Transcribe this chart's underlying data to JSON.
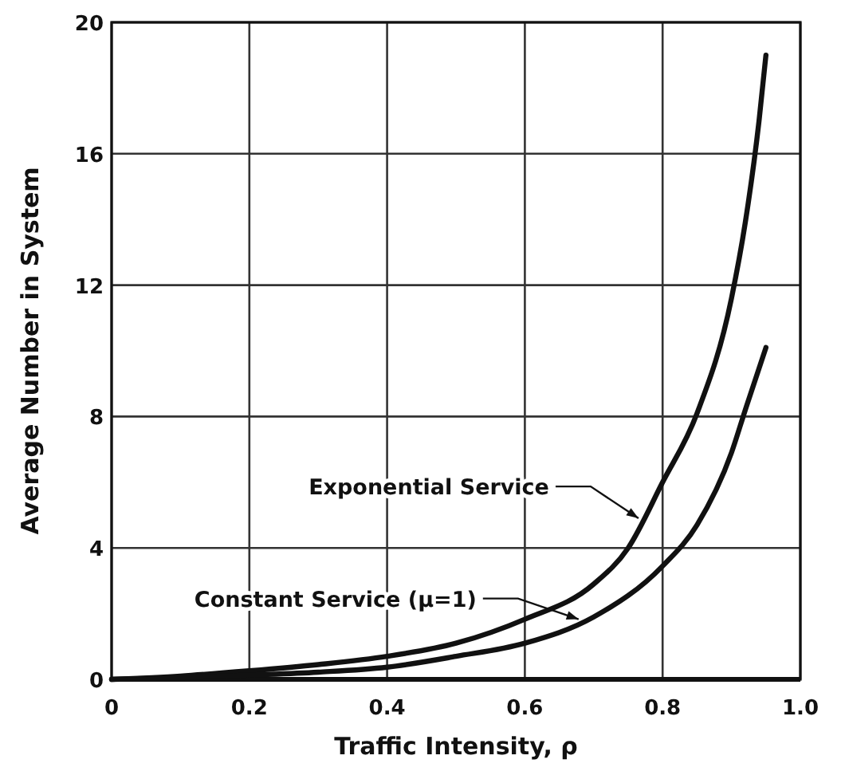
{
  "chart_data": {
    "type": "line",
    "xlabel": "Traffic Intensity, ρ",
    "ylabel": "Average Number in System",
    "xlim": [
      0,
      1
    ],
    "ylim": [
      0,
      20
    ],
    "xticks": [
      0,
      0.2,
      0.4,
      0.6,
      0.8,
      {
        "value": 1,
        "label": "1.0"
      }
    ],
    "yticks": [
      0,
      4,
      8,
      12,
      16,
      20
    ],
    "grid": true,
    "line_style": "solid",
    "marker": "none",
    "series": [
      {
        "color": "#111111",
        "x": [
          0,
          0.1,
          0.2,
          0.3,
          0.4,
          0.5,
          0.6,
          0.7,
          0.75,
          0.8,
          0.85,
          0.9,
          0.92,
          0.94,
          0.95
        ],
        "values": [
          0,
          0.1,
          0.26,
          0.45,
          0.7,
          1.1,
          1.83,
          2.9,
          4.0,
          6.0,
          8.1,
          11.6,
          13.9,
          17.0,
          19.0
        ]
      },
      {
        "color": "#111111",
        "x": [
          0,
          0.1,
          0.2,
          0.3,
          0.4,
          0.5,
          0.6,
          0.7,
          0.8,
          0.85,
          0.9,
          0.92,
          0.95
        ],
        "values": [
          0,
          0.05,
          0.13,
          0.22,
          0.37,
          0.7,
          1.1,
          1.9,
          3.45,
          4.7,
          6.9,
          8.2,
          10.1
        ]
      }
    ],
    "annotations": [
      {
        "text": "Exponential Service",
        "x": 0.765,
        "y": 4.9
      },
      {
        "text": "Constant Service (μ=1)",
        "x": 0.678,
        "y": 1.83
      }
    ]
  }
}
